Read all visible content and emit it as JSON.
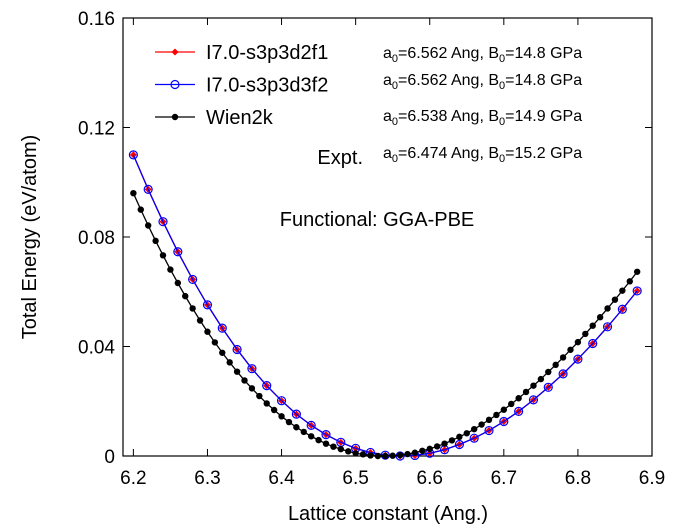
{
  "chart_data": {
    "type": "line",
    "xlabel": "Lattice constant (Ang.)",
    "ylabel": "Total Energy (eV/atom)",
    "xlim": [
      6.186,
      6.9
    ],
    "ylim": [
      0,
      0.16
    ],
    "xticks": [
      6.2,
      6.3,
      6.4,
      6.5,
      6.6,
      6.7,
      6.8,
      6.9
    ],
    "yticks": [
      0,
      0.04,
      0.08,
      0.12,
      0.16
    ],
    "legend": "upper left",
    "series": [
      {
        "name": "I7.0-s3p3d2f1",
        "color": "#ff0000",
        "marker": "diamond",
        "x": [
          6.2,
          6.22,
          6.24,
          6.26,
          6.28,
          6.3,
          6.32,
          6.34,
          6.36,
          6.38,
          6.4,
          6.42,
          6.44,
          6.46,
          6.48,
          6.5,
          6.52,
          6.54,
          6.56,
          6.58,
          6.6,
          6.62,
          6.64,
          6.66,
          6.68,
          6.7,
          6.72,
          6.74,
          6.76,
          6.78,
          6.8,
          6.82,
          6.84,
          6.86,
          6.88
        ],
        "values": [
          0.11,
          0.0974,
          0.0856,
          0.0746,
          0.0645,
          0.0552,
          0.0467,
          0.0389,
          0.0319,
          0.0257,
          0.0202,
          0.0153,
          0.0112,
          0.0078,
          0.005,
          0.0028,
          0.0013,
          0.0003,
          0,
          0.0002,
          0.001,
          0.0023,
          0.0042,
          0.0065,
          0.0093,
          0.0126,
          0.0163,
          0.0205,
          0.0251,
          0.03,
          0.0354,
          0.0411,
          0.0472,
          0.0536,
          0.0603
        ]
      },
      {
        "name": "I7.0-s3p3d3f2",
        "color": "#0000ff",
        "marker": "open-circle",
        "x": [
          6.2,
          6.22,
          6.24,
          6.26,
          6.28,
          6.3,
          6.32,
          6.34,
          6.36,
          6.38,
          6.4,
          6.42,
          6.44,
          6.46,
          6.48,
          6.5,
          6.52,
          6.54,
          6.56,
          6.58,
          6.6,
          6.62,
          6.64,
          6.66,
          6.68,
          6.7,
          6.72,
          6.74,
          6.76,
          6.78,
          6.8,
          6.82,
          6.84,
          6.86,
          6.88
        ],
        "values": [
          0.11,
          0.0974,
          0.0856,
          0.0746,
          0.0645,
          0.0552,
          0.0467,
          0.0389,
          0.0319,
          0.0257,
          0.0202,
          0.0153,
          0.0112,
          0.0078,
          0.005,
          0.0028,
          0.0013,
          0.0003,
          0,
          0.0002,
          0.001,
          0.0023,
          0.0042,
          0.0065,
          0.0093,
          0.0126,
          0.0163,
          0.0205,
          0.0251,
          0.03,
          0.0354,
          0.0411,
          0.0472,
          0.0536,
          0.0603
        ]
      },
      {
        "name": "Wien2k",
        "color": "#000000",
        "marker": "circle",
        "x": [
          6.2,
          6.21,
          6.22,
          6.23,
          6.24,
          6.25,
          6.26,
          6.27,
          6.28,
          6.29,
          6.3,
          6.31,
          6.32,
          6.33,
          6.34,
          6.35,
          6.36,
          6.37,
          6.38,
          6.39,
          6.4,
          6.41,
          6.42,
          6.43,
          6.44,
          6.45,
          6.46,
          6.47,
          6.48,
          6.49,
          6.5,
          6.51,
          6.52,
          6.53,
          6.54,
          6.55,
          6.56,
          6.57,
          6.58,
          6.59,
          6.6,
          6.61,
          6.62,
          6.63,
          6.64,
          6.65,
          6.66,
          6.67,
          6.68,
          6.69,
          6.7,
          6.71,
          6.72,
          6.73,
          6.74,
          6.75,
          6.76,
          6.77,
          6.78,
          6.79,
          6.8,
          6.81,
          6.82,
          6.83,
          6.84,
          6.85,
          6.86,
          6.87,
          6.88
        ],
        "values": [
          0.096,
          0.09,
          0.0842,
          0.0786,
          0.0733,
          0.0681,
          0.0632,
          0.0584,
          0.0539,
          0.0495,
          0.0454,
          0.0415,
          0.0377,
          0.0342,
          0.0308,
          0.0276,
          0.0247,
          0.0219,
          0.0192,
          0.0168,
          0.0145,
          0.0124,
          0.0105,
          0.0088,
          0.0072,
          0.0058,
          0.0045,
          0.0034,
          0.0025,
          0.0017,
          0.001,
          0.0006,
          0.0002,
          0,
          0,
          0.0001,
          0.0003,
          0.0007,
          0.0012,
          0.0019,
          0.0026,
          0.0035,
          0.0045,
          0.0057,
          0.007,
          0.0083,
          0.0098,
          0.0115,
          0.0132,
          0.015,
          0.0169,
          0.019,
          0.0211,
          0.0234,
          0.0257,
          0.0281,
          0.0307,
          0.0333,
          0.036,
          0.0388,
          0.0416,
          0.0446,
          0.0476,
          0.0507,
          0.0539,
          0.0571,
          0.0604,
          0.0638,
          0.0673
        ]
      }
    ],
    "fit_labels": [
      [
        {
          "text": "a"
        },
        {
          "sub": "0"
        },
        {
          "text": "=6.562 Ang, B"
        },
        {
          "sub": "0"
        },
        {
          "text": "=14.8 GPa"
        }
      ],
      [
        {
          "text": "a"
        },
        {
          "sub": "0"
        },
        {
          "text": "=6.562 Ang, B"
        },
        {
          "sub": "0"
        },
        {
          "text": "=14.8 GPa"
        }
      ],
      [
        {
          "text": "a"
        },
        {
          "sub": "0"
        },
        {
          "text": "=6.538 Ang, B"
        },
        {
          "sub": "0"
        },
        {
          "text": "=14.9 GPa"
        }
      ],
      [
        {
          "text": "a"
        },
        {
          "sub": "0"
        },
        {
          "text": "=6.474 Ang, B"
        },
        {
          "sub": "0"
        },
        {
          "text": "=15.2 GPa"
        }
      ]
    ],
    "annotations": [
      {
        "text": "Expt."
      },
      {
        "text": "Functional: GGA-PBE"
      }
    ]
  }
}
